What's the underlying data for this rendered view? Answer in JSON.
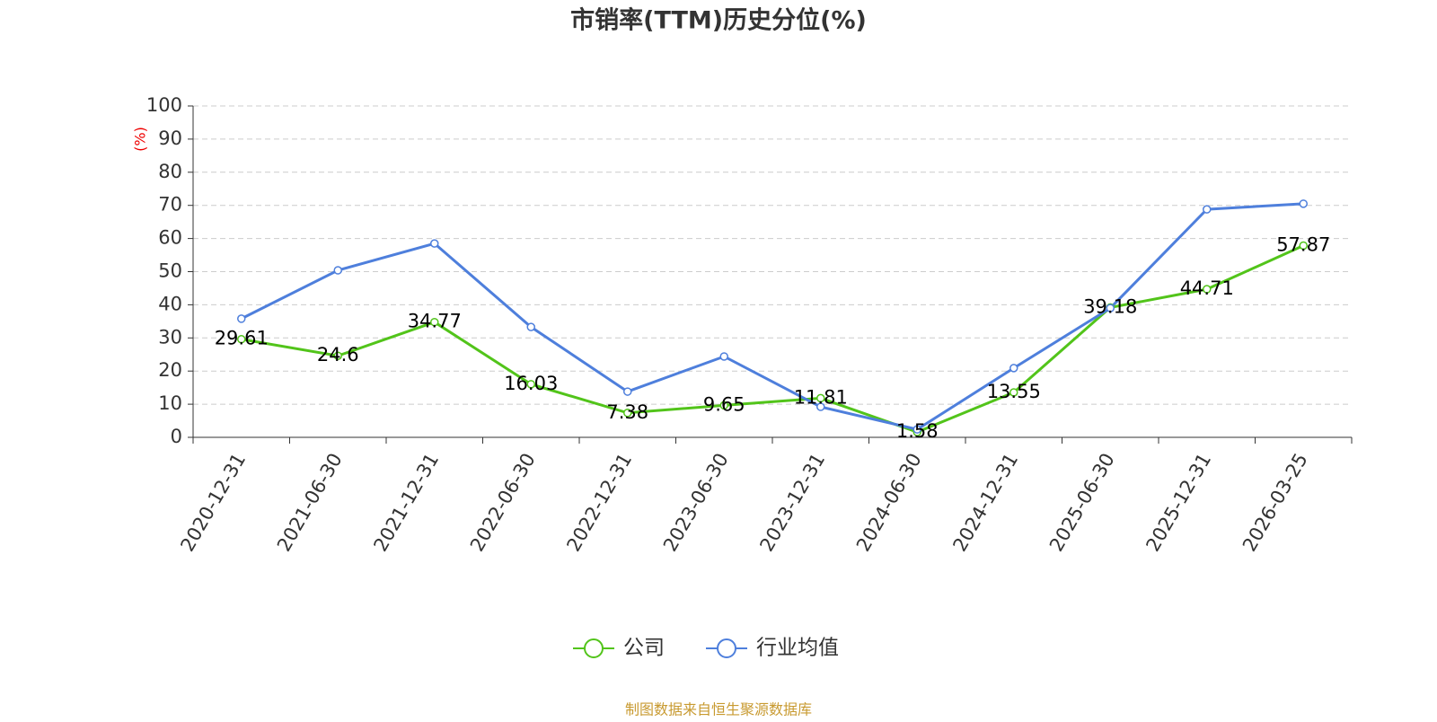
{
  "chart_data": {
    "type": "line",
    "title": "市销率(TTM)历史分位(%)",
    "y_label": "(%)",
    "categories": [
      "2020-12-31",
      "2021-06-30",
      "2021-12-31",
      "2022-06-30",
      "2022-12-31",
      "2023-06-30",
      "2023-12-31",
      "2024-06-30",
      "2024-12-31",
      "2025-06-30",
      "2025-12-31",
      "2026-03-25"
    ],
    "series": [
      {
        "name": "公司",
        "color": "#52c41a",
        "labels": true,
        "values": [
          29.61,
          24.6,
          34.77,
          16.03,
          7.38,
          9.65,
          11.81,
          1.58,
          13.55,
          39.18,
          44.71,
          57.87
        ]
      },
      {
        "name": "行业均值",
        "color": "#4e7fdc",
        "labels": false,
        "values": [
          35.8,
          50.4,
          58.5,
          33.3,
          13.8,
          24.4,
          9.2,
          2.4,
          20.9,
          39.0,
          68.8,
          70.5
        ]
      }
    ],
    "ylim": [
      0,
      100
    ],
    "yticks": [
      0,
      10,
      20,
      30,
      40,
      50,
      60,
      70,
      80,
      90,
      100
    ],
    "grid": true,
    "legend": "bottom",
    "source": "制图数据来自恒生聚源数据库"
  }
}
